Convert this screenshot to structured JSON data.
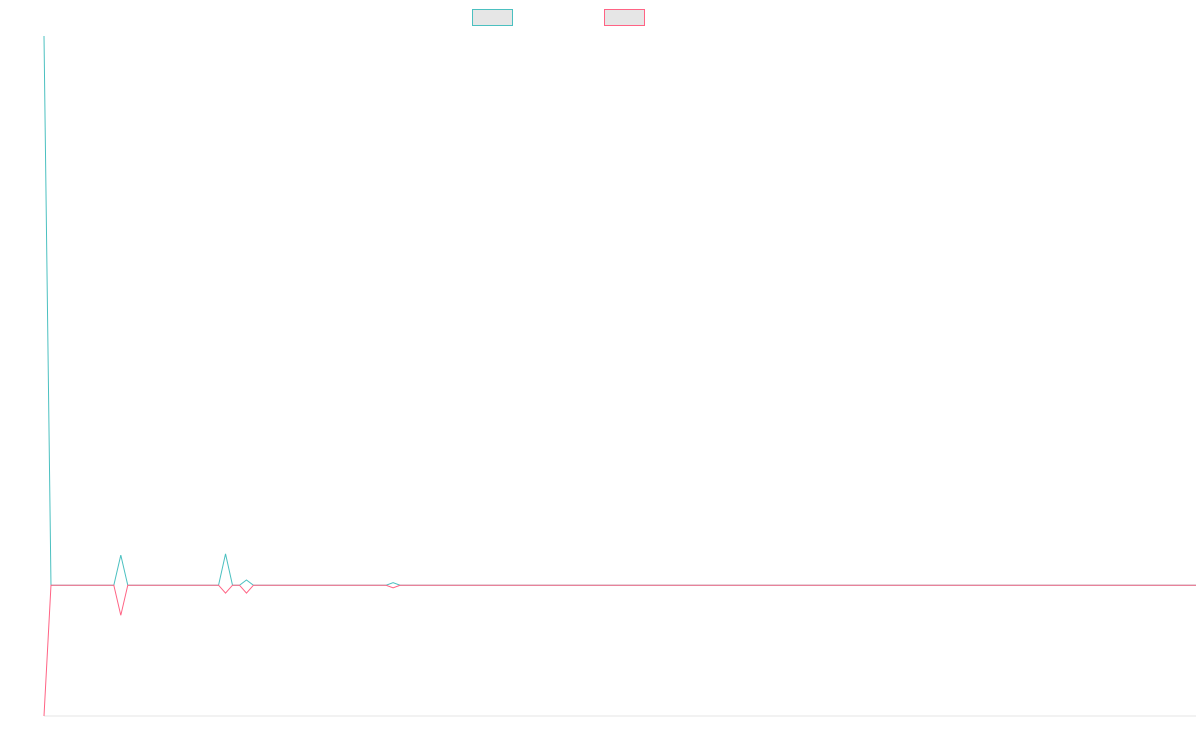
{
  "chart_data": {
    "type": "line",
    "title": "",
    "xlabel": "",
    "ylabel": "",
    "grid": false,
    "legend_position": "top-center",
    "x_count": 166,
    "ylim": [
      -100,
      420
    ],
    "series": [
      {
        "color": "#4bc0c0",
        "points": [
          [
            0,
            420
          ],
          [
            1,
            0
          ],
          [
            10,
            0
          ],
          [
            11,
            23
          ],
          [
            12,
            0
          ],
          [
            25,
            0
          ],
          [
            26,
            24
          ],
          [
            27,
            0
          ],
          [
            28,
            0
          ],
          [
            29,
            4
          ],
          [
            30,
            0
          ],
          [
            49,
            0
          ],
          [
            50,
            2
          ],
          [
            51,
            0
          ],
          [
            165,
            0
          ]
        ]
      },
      {
        "color": "#ff6384",
        "points": [
          [
            0,
            -100
          ],
          [
            1,
            0
          ],
          [
            10,
            0
          ],
          [
            11,
            -23
          ],
          [
            12,
            0
          ],
          [
            25,
            0
          ],
          [
            26,
            -6
          ],
          [
            27,
            0
          ],
          [
            28,
            0
          ],
          [
            29,
            -6
          ],
          [
            30,
            0
          ],
          [
            49,
            0
          ],
          [
            50,
            -2
          ],
          [
            51,
            0
          ],
          [
            165,
            0
          ]
        ]
      }
    ]
  }
}
